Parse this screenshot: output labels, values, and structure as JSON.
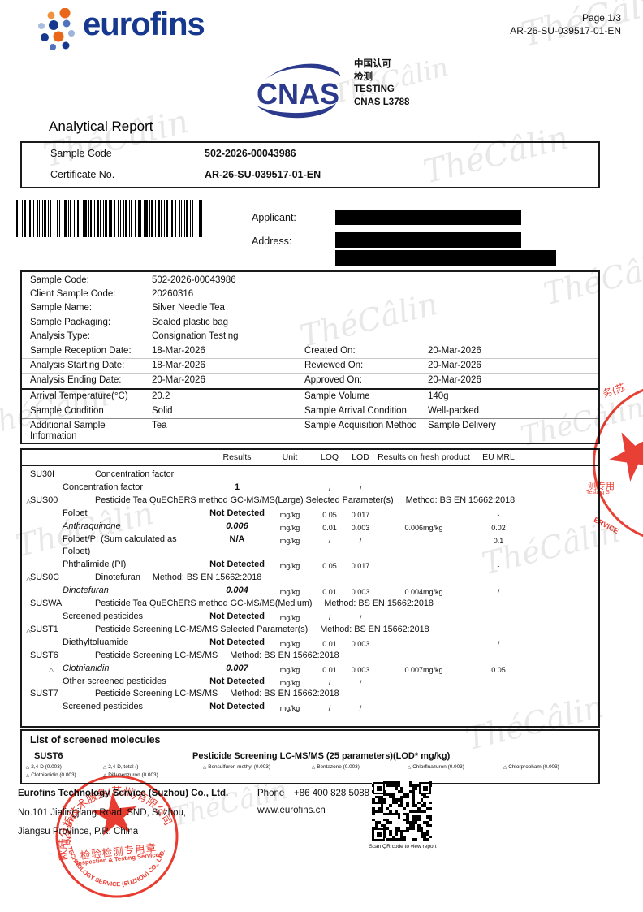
{
  "watermark": {
    "text": "ThéCâlin"
  },
  "header": {
    "brand": "eurofins",
    "page_label": "Page 1/3",
    "report_no": "AR-26-SU-039517-01-EN"
  },
  "cnas": {
    "acronym": "CNAS",
    "cn_line1": "中国认可",
    "cn_line2": "检测",
    "en_line1": "TESTING",
    "en_line2": "CNAS L3788"
  },
  "title": "Analytical Report",
  "certificate": {
    "sample_code_label": "Sample Code",
    "sample_code": "502-2026-00043986",
    "certificate_label": "Certificate No.",
    "certificate_no": "AR-26-SU-039517-01-EN"
  },
  "applicant": {
    "applicant_label": "Applicant:",
    "address_label": "Address:"
  },
  "sample_info": {
    "rows": [
      {
        "label": "Sample Code:",
        "value": "502-2026-00043986"
      },
      {
        "label": "Client Sample Code:",
        "value": "20260316"
      },
      {
        "label": "Sample Name:",
        "value": "Silver Needle Tea"
      },
      {
        "label": "Sample Packaging:",
        "value": "Sealed plastic bag"
      },
      {
        "label": "Analysis Type:",
        "value": "Consignation Testing"
      },
      {
        "label": "Sample Reception Date:",
        "value": "18-Mar-2026",
        "label2": "Created On:",
        "value2": "20-Mar-2026"
      },
      {
        "label": "Analysis Starting Date:",
        "value": "18-Mar-2026",
        "label2": "Reviewed On:",
        "value2": "20-Mar-2026"
      },
      {
        "label": "Analysis Ending Date:",
        "value": "20-Mar-2026",
        "label2": "Approved On:",
        "value2": "20-Mar-2026"
      },
      {
        "label": "Arrival Temperature(°C)",
        "value": "20.2",
        "label2": "Sample Volume",
        "value2": "140g"
      },
      {
        "label": "Sample Condition",
        "value": "Solid",
        "label2": "Sample Arrival Condition",
        "value2": "Well-packed"
      },
      {
        "label": "Additional Sample Information",
        "value": "Tea",
        "label2": "Sample Acquisition Method",
        "value2": "Sample Delivery"
      }
    ]
  },
  "results_table": {
    "headers": [
      "Results",
      "Unit",
      "LOQ",
      "LOD",
      "Results on fresh product",
      "EU MRL"
    ],
    "rows": [
      {
        "type": "section",
        "code": "SU30I",
        "desc": "Concentration factor",
        "method": "",
        "tri": false
      },
      {
        "type": "param",
        "name": "Concentration factor",
        "result": "1",
        "unit": "",
        "loq": "/",
        "lod": "/",
        "fresh": "",
        "mrl": "",
        "italic": false,
        "tri": false
      },
      {
        "type": "section",
        "code": "SUS00",
        "desc": "Pesticide Tea QuEChERS method GC-MS/MS(Large) Selected Parameter(s)",
        "method": "Method: BS EN 15662:2018",
        "tri": true
      },
      {
        "type": "param",
        "name": "Folpet",
        "result": "Not Detected",
        "unit": "mg/kg",
        "loq": "0.05",
        "lod": "0.017",
        "fresh": "",
        "mrl": "-",
        "italic": false,
        "tri": false
      },
      {
        "type": "param",
        "name": "Anthraquinone",
        "result": "0.006",
        "unit": "mg/kg",
        "loq": "0.01",
        "lod": "0.003",
        "fresh": "0.006mg/kg",
        "mrl": "0.02",
        "italic": true,
        "tri": false
      },
      {
        "type": "param",
        "name": "Folpet/PI (Sum calculated as Folpet)",
        "result": "N/A",
        "unit": "mg/kg",
        "loq": "/",
        "lod": "/",
        "fresh": "",
        "mrl": "0.1",
        "italic": false,
        "tri": false
      },
      {
        "type": "param",
        "name": "Phthalimide (PI)",
        "result": "Not Detected",
        "unit": "mg/kg",
        "loq": "0.05",
        "lod": "0.017",
        "fresh": "",
        "mrl": "-",
        "italic": false,
        "tri": false
      },
      {
        "type": "section",
        "code": "SUS0C",
        "desc": "Dinotefuran",
        "method": "Method: BS EN 15662:2018",
        "tri": true
      },
      {
        "type": "param",
        "name": "Dinotefuran",
        "result": "0.004",
        "unit": "mg/kg",
        "loq": "0.01",
        "lod": "0.003",
        "fresh": "0.004mg/kg",
        "mrl": "/",
        "italic": true,
        "tri": false
      },
      {
        "type": "section",
        "code": "SUSWA",
        "desc": "Pesticide Tea QuEChERS method GC-MS/MS(Medium)",
        "method": "Method: BS EN 15662:2018",
        "tri": false
      },
      {
        "type": "param",
        "name": "Screened pesticides",
        "result": "Not Detected",
        "unit": "mg/kg",
        "loq": "/",
        "lod": "/",
        "fresh": "",
        "mrl": "",
        "italic": false,
        "tri": false
      },
      {
        "type": "section",
        "code": "SUST1",
        "desc": "Pesticide Screening LC-MS/MS Selected Parameter(s)",
        "method": "Method: BS EN 15662:2018",
        "tri": true
      },
      {
        "type": "param",
        "name": "Diethyltoluamide",
        "result": "Not Detected",
        "unit": "mg/kg",
        "loq": "0.01",
        "lod": "0.003",
        "fresh": "",
        "mrl": "/",
        "italic": false,
        "tri": false
      },
      {
        "type": "section",
        "code": "SUST6",
        "desc": "Pesticide Screening LC-MS/MS",
        "method": "Method: BS EN 15662:2018",
        "tri": false
      },
      {
        "type": "param",
        "name": "Clothianidin",
        "result": "0.007",
        "unit": "mg/kg",
        "loq": "0.01",
        "lod": "0.003",
        "fresh": "0.007mg/kg",
        "mrl": "0.05",
        "italic": true,
        "tri": true
      },
      {
        "type": "param",
        "name": "Other screened pesticides",
        "result": "Not Detected",
        "unit": "mg/kg",
        "loq": "/",
        "lod": "/",
        "fresh": "",
        "mrl": "",
        "italic": false,
        "tri": false
      },
      {
        "type": "section",
        "code": "SUST7",
        "desc": "Pesticide Screening LC-MS/MS",
        "method": "Method: BS EN 15662:2018",
        "tri": false
      },
      {
        "type": "param",
        "name": "Screened pesticides",
        "result": "Not Detected",
        "unit": "mg/kg",
        "loq": "/",
        "lod": "/",
        "fresh": "",
        "mrl": "",
        "italic": false,
        "tri": false
      }
    ]
  },
  "screened_molecules": {
    "title": "List of screened molecules",
    "code": "SUST6",
    "desc": "Pesticide Screening LC-MS/MS (25 parameters)(LOD* mg/kg)",
    "items": [
      "2,4-D (0.003)",
      "2,4-D, total ()",
      "Bensulfuron methyl (0.003)",
      "Bentazone (0.003)",
      "Chlorfluazuron (0.003)",
      "Chlorpropham (0.003)",
      "Clothianidin (0.003)",
      "Diflubenzuron (0.003)"
    ]
  },
  "footer": {
    "company": "Eurofins Technology Service (Suzhou) Co., Ltd.",
    "address1": "No.101 Jialingjiang Road, SND, Suzhou,",
    "address2": "Jiangsu Province, P.R. China",
    "phone_label": "Phone",
    "phone": "+86 400 828 5088",
    "website": "www.eurofins.cn",
    "qr_caption": "Scan QR code to view report"
  },
  "stamp": {
    "arc_top": "欧陆分析技术服务(苏州)有限公司",
    "line1": "检验检测专用章",
    "line2": "Inspection & Testing Services",
    "arc_bottom": "EUROFINS TECHNOLOGY SERVICE (SUZHOU) CO., LTD."
  },
  "side_stamp": {
    "frag_top": "务(苏",
    "frag_mid": "测专用",
    "frag_mid_en": "Testing S",
    "frag_bottom": "ERVICE"
  },
  "icons": {
    "triangle": "△"
  }
}
